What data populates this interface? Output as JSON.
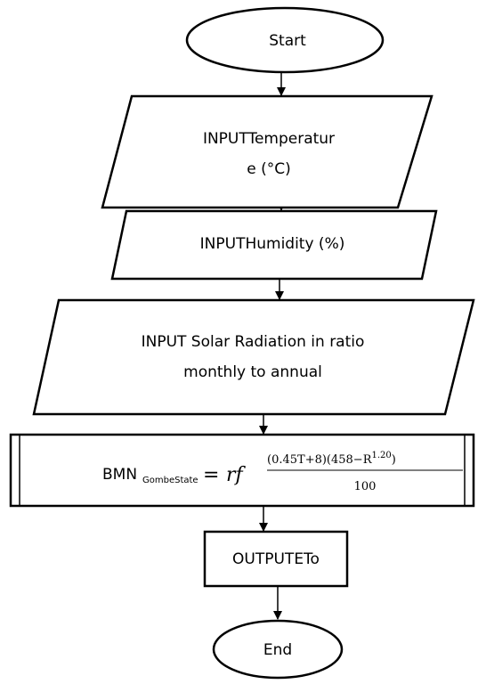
{
  "nodes": [
    {
      "label": [
        "Start"
      ]
    },
    {
      "label": [
        "INPUTTemperatur",
        "e (°C)"
      ]
    },
    {
      "label": [
        "INPUTHumidity (%)"
      ]
    },
    {
      "label": [
        "INPUT Solar Radiation in ratio",
        "monthly to annual"
      ]
    },
    {
      "formula": {
        "lhs": "BMN",
        "lhs_sub": "GombeState",
        "equals": "=",
        "rf": "rf",
        "numerator": "(0.45T+8)(458−R",
        "exponent": "1.20",
        "numerator_end": ")",
        "denominator": "100"
      }
    },
    {
      "label": [
        "OUTPUTETo"
      ]
    },
    {
      "label": [
        "End"
      ]
    }
  ]
}
